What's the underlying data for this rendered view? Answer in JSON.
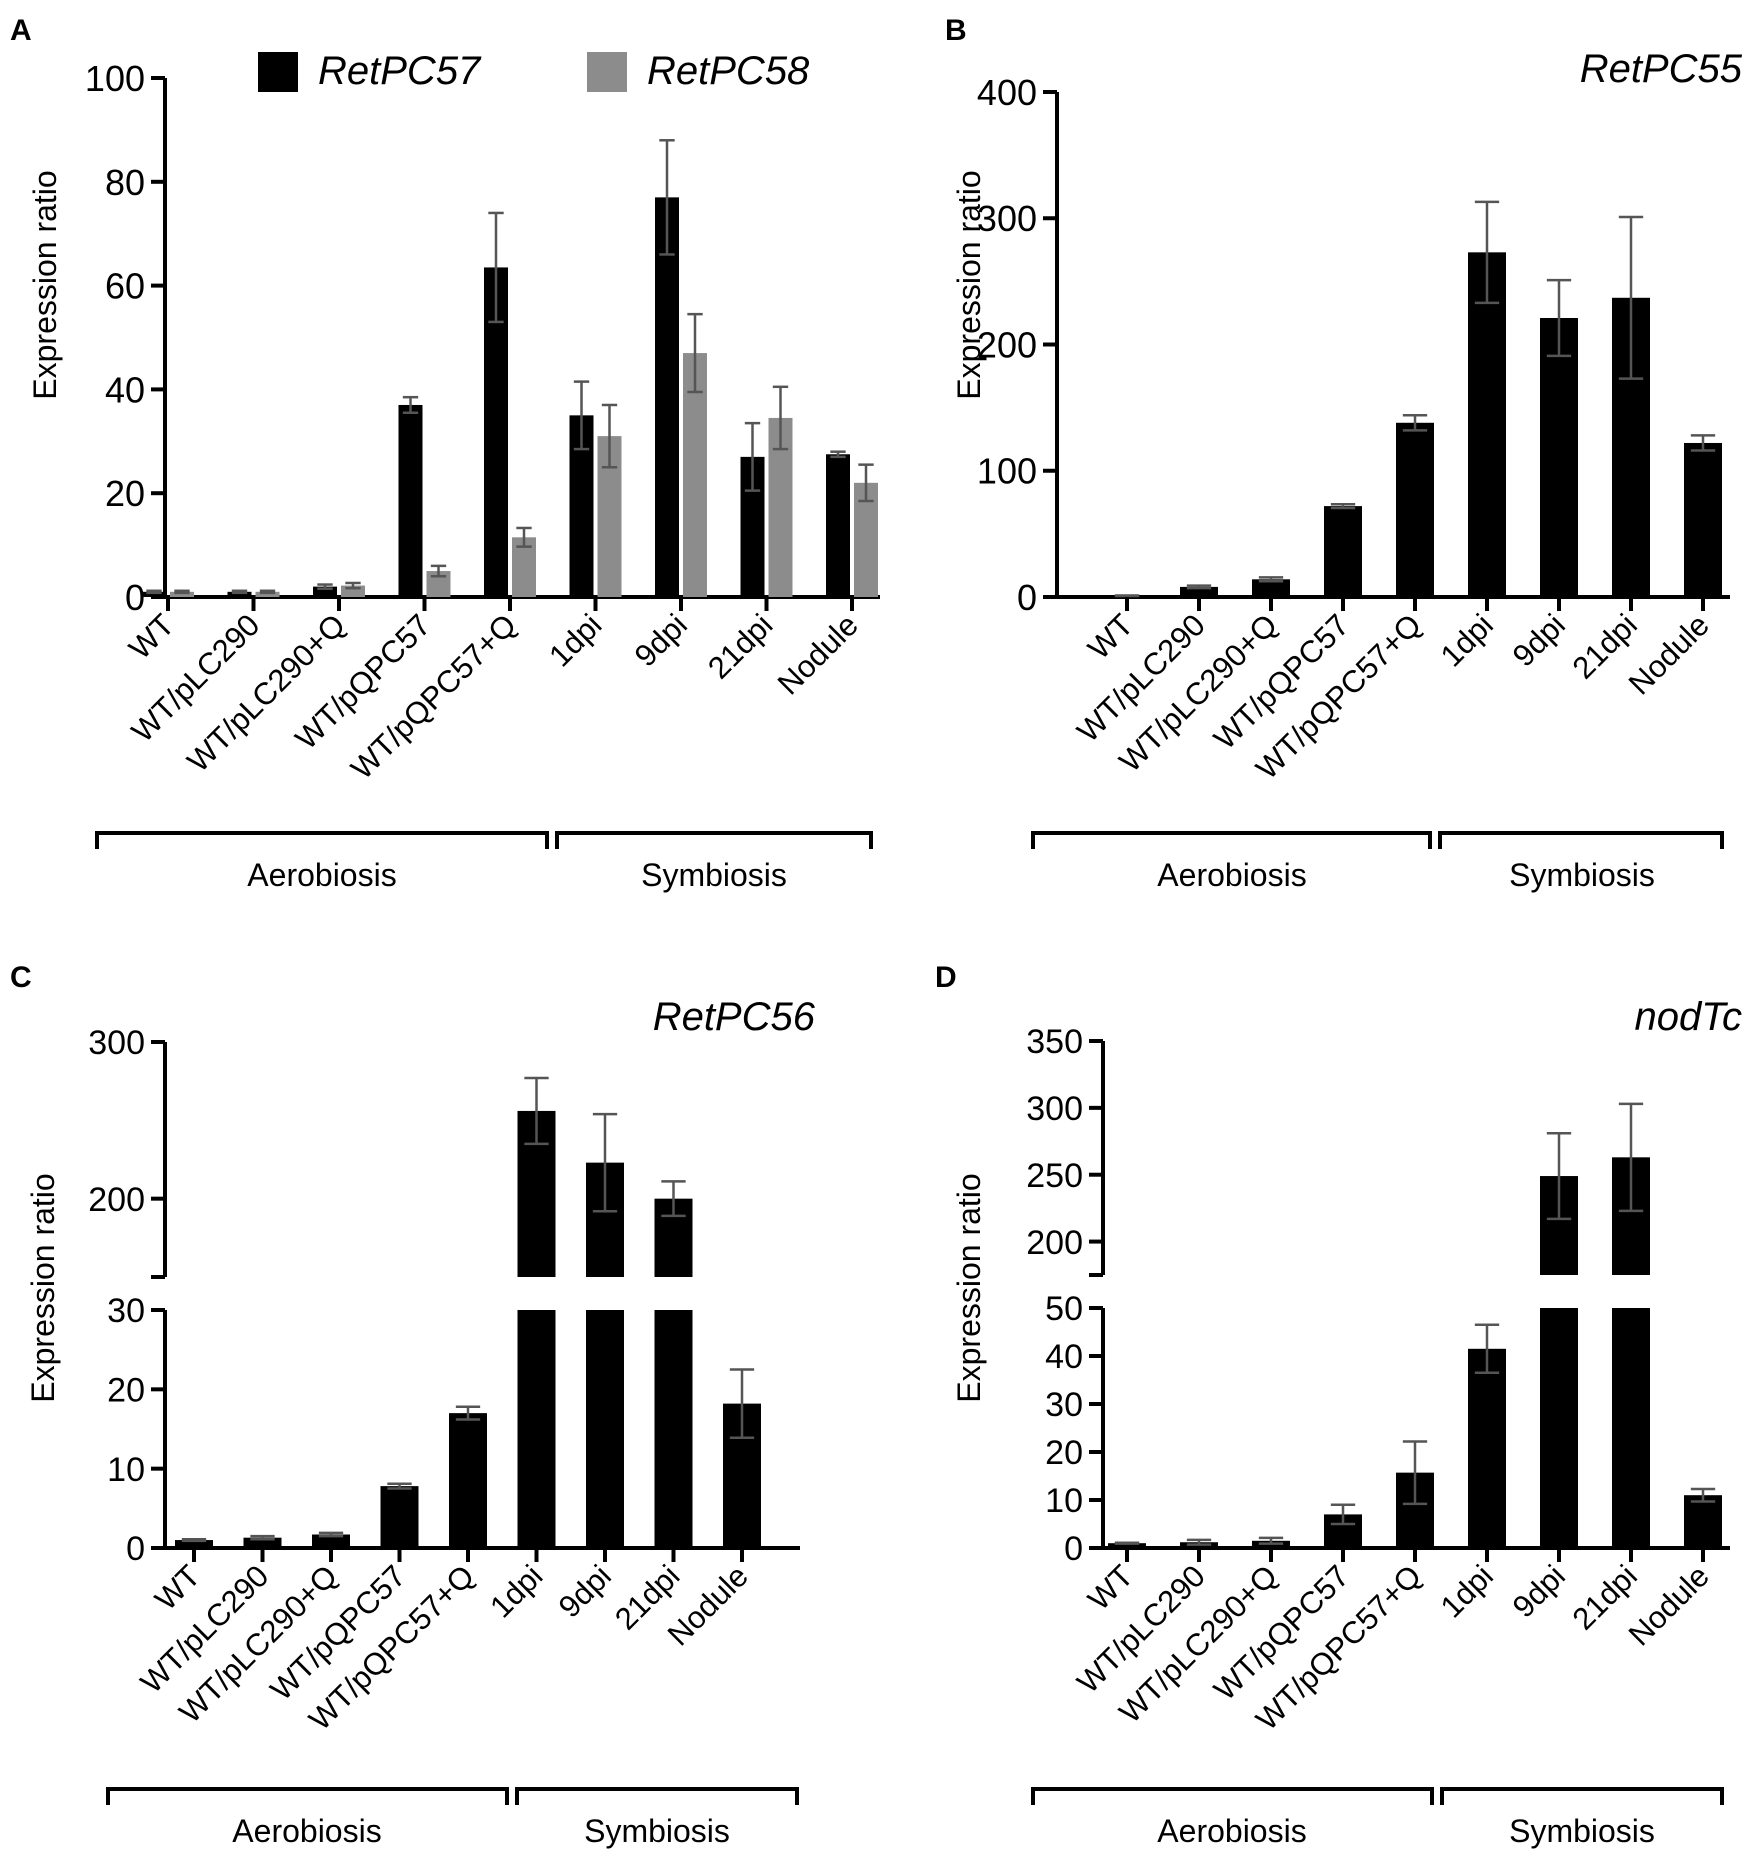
{
  "figure": {
    "palette": {
      "black": "#000000",
      "gray": "#8c8c8c",
      "errorbar": "#555555"
    }
  },
  "chart_data": [
    {
      "panel": "A",
      "type": "bar",
      "title": "",
      "ylabel": "Expression ratio",
      "ylim": [
        0,
        100
      ],
      "yticks": [
        "0",
        "20",
        "40",
        "60",
        "80",
        "100"
      ],
      "categories": [
        "WT",
        "WT/pLC290",
        "WT/pLC290+Q",
        "WT/pQPC57",
        "WT/pQPC57+Q",
        "1dpi",
        "9dpi",
        "21dpi",
        "Nodule"
      ],
      "series": [
        {
          "name": "RetPC57",
          "color": "#000000",
          "values": [
            1,
            1,
            2,
            37,
            63.5,
            35,
            77,
            27,
            27.5
          ],
          "errors": [
            0.2,
            0.2,
            0.4,
            1.5,
            10.5,
            6.5,
            11,
            6.5,
            0.5
          ]
        },
        {
          "name": "RetPC58",
          "color": "#8c8c8c",
          "values": [
            1,
            1,
            2.2,
            5,
            11.5,
            31,
            47,
            34.5,
            22
          ],
          "errors": [
            0.2,
            0.2,
            0.5,
            1,
            1.8,
            6,
            7.5,
            6,
            3.5
          ]
        }
      ],
      "legend": "top",
      "groups": [
        {
          "label": "Aerobiosis",
          "span": [
            0,
            4
          ]
        },
        {
          "label": "Symbiosis",
          "span": [
            5,
            8
          ]
        }
      ]
    },
    {
      "panel": "B",
      "type": "bar",
      "title": "RetPC55",
      "ylabel": "Expression ratio",
      "ylim": [
        0,
        400
      ],
      "yticks": [
        "0",
        "100",
        "200",
        "300",
        "400"
      ],
      "categories": [
        "WT",
        "WT/pLC290",
        "WT/pLC290+Q",
        "WT/pQPC57",
        "WT/pQPC57+Q",
        "1dpi",
        "9dpi",
        "21dpi",
        "Nodule"
      ],
      "series": [
        {
          "name": "RetPC55",
          "color": "#000000",
          "values": [
            1,
            8,
            14,
            72,
            138,
            273,
            221,
            237,
            122
          ],
          "errors": [
            0.2,
            1,
            1.5,
            1.5,
            6,
            40,
            30,
            64,
            6
          ]
        }
      ],
      "groups": [
        {
          "label": "Aerobiosis",
          "span": [
            0,
            4
          ]
        },
        {
          "label": "Symbiosis",
          "span": [
            5,
            8
          ]
        }
      ]
    },
    {
      "panel": "C",
      "type": "bar",
      "title": "RetPC56",
      "ylabel": "Expression ratio",
      "broken_axis": {
        "lower": [
          0,
          30
        ],
        "upper": [
          150,
          300
        ]
      },
      "yticks_lower": [
        "0",
        "10",
        "20",
        "30"
      ],
      "yticks_upper": [
        "200",
        "300"
      ],
      "categories": [
        "WT",
        "WT/pLC290",
        "WT/pLC290+Q",
        "WT/pQPC57",
        "WT/pQPC57+Q",
        "1dpi",
        "9dpi",
        "21dpi",
        "Nodule"
      ],
      "series": [
        {
          "name": "RetPC56",
          "color": "#000000",
          "values": [
            1,
            1.3,
            1.7,
            7.8,
            17,
            256,
            223,
            200,
            18.2
          ],
          "errors": [
            0.1,
            0.2,
            0.2,
            0.3,
            0.8,
            21,
            31,
            11,
            4.3
          ]
        }
      ],
      "groups": [
        {
          "label": "Aerobiosis",
          "span": [
            0,
            4
          ]
        },
        {
          "label": "Symbiosis",
          "span": [
            5,
            8
          ]
        }
      ]
    },
    {
      "panel": "D",
      "type": "bar",
      "title": "nodTc",
      "ylabel": "Expression ratio",
      "broken_axis": {
        "lower": [
          0,
          50
        ],
        "upper": [
          175,
          350
        ]
      },
      "yticks_lower": [
        "0",
        "10",
        "20",
        "30",
        "40",
        "50"
      ],
      "yticks_upper": [
        "200",
        "250",
        "300",
        "350"
      ],
      "categories": [
        "WT",
        "WT/pLC290",
        "WT/pLC290+Q",
        "WT/pQPC57",
        "WT/pQPC57+Q",
        "1dpi",
        "9dpi",
        "21dpi",
        "Nodule"
      ],
      "series": [
        {
          "name": "nodTc",
          "color": "#000000",
          "values": [
            1,
            1.2,
            1.5,
            7,
            15.7,
            41.5,
            249,
            263,
            11
          ],
          "errors": [
            0.1,
            0.5,
            0.6,
            2,
            6.5,
            5,
            32,
            40,
            1.3
          ]
        }
      ],
      "groups": [
        {
          "label": "Aerobiosis",
          "span": [
            0,
            4
          ]
        },
        {
          "label": "Symbiosis",
          "span": [
            5,
            8
          ]
        }
      ]
    }
  ]
}
